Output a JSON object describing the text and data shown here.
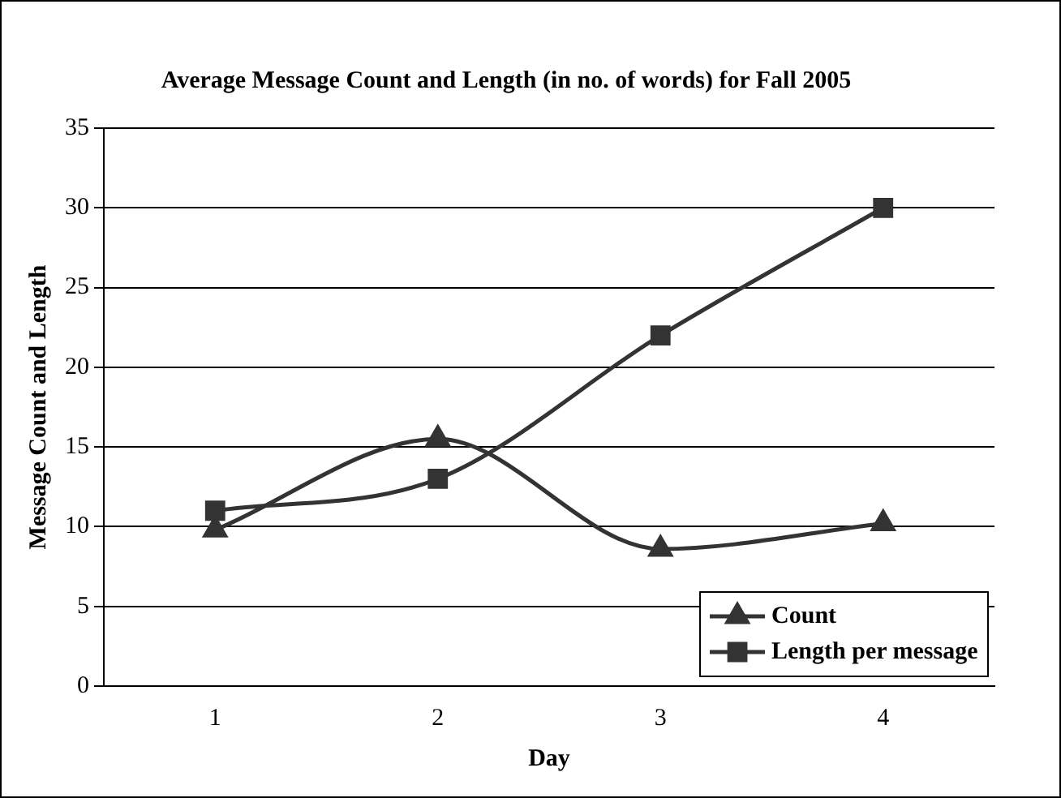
{
  "chart_data": {
    "type": "line",
    "title": "Average Message Count and Length (in no. of words) for Fall 2005",
    "xlabel": "Day",
    "ylabel": "Message Count and Length",
    "categories": [
      "1",
      "2",
      "3",
      "4"
    ],
    "series": [
      {
        "name": "Count",
        "color": "#333333",
        "marker": "triangle",
        "values": [
          9.8,
          15.5,
          8.6,
          10.2
        ]
      },
      {
        "name": "Length per message",
        "color": "#333333",
        "marker": "square",
        "values": [
          11,
          13,
          22,
          30
        ]
      }
    ],
    "ylim": [
      0,
      35
    ],
    "yticks": [
      0,
      5,
      10,
      15,
      20,
      25,
      30,
      35
    ],
    "grid": "y",
    "legend": "bottom right",
    "line_style": "solid"
  }
}
